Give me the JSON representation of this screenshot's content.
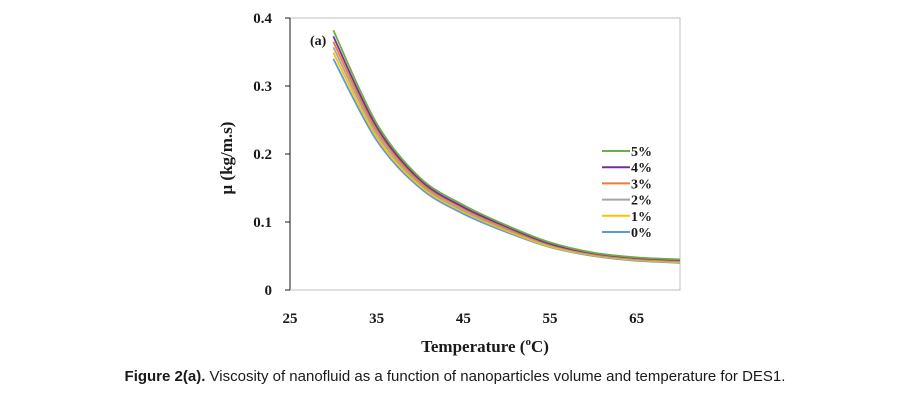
{
  "chart_data": {
    "type": "line",
    "panel_label": "(a)",
    "xlabel": "Temperature",
    "xlabel_unit_prefix": "(",
    "xlabel_unit_sup": "o",
    "xlabel_unit_suffix": "C)",
    "ylabel": "μ (kg/m.s)",
    "xlim": [
      25,
      70
    ],
    "ylim": [
      0,
      0.4
    ],
    "xticks": [
      25,
      35,
      45,
      55,
      65
    ],
    "yticks": [
      0,
      0.1,
      0.2,
      0.3,
      0.4
    ],
    "ytick_labels": [
      "0",
      "0.1",
      "0.2",
      "0.3",
      "0.4"
    ],
    "legend_position": "right",
    "x": [
      30,
      35,
      40,
      45,
      50,
      55,
      60,
      65,
      70
    ],
    "series": [
      {
        "name": "5%",
        "color": "#70ad47",
        "values": [
          0.382,
          0.245,
          0.165,
          0.125,
          0.095,
          0.07,
          0.055,
          0.048,
          0.045
        ]
      },
      {
        "name": "4%",
        "color": "#7030a0",
        "values": [
          0.373,
          0.24,
          0.162,
          0.122,
          0.093,
          0.068,
          0.054,
          0.047,
          0.044
        ]
      },
      {
        "name": "3%",
        "color": "#ed7d31",
        "values": [
          0.365,
          0.235,
          0.159,
          0.12,
          0.091,
          0.067,
          0.053,
          0.046,
          0.043
        ]
      },
      {
        "name": "2%",
        "color": "#a5a5a5",
        "values": [
          0.357,
          0.23,
          0.156,
          0.117,
          0.089,
          0.066,
          0.052,
          0.045,
          0.042
        ]
      },
      {
        "name": "1%",
        "color": "#ffc000",
        "values": [
          0.349,
          0.225,
          0.153,
          0.115,
          0.087,
          0.064,
          0.051,
          0.044,
          0.041
        ]
      },
      {
        "name": "0%",
        "color": "#5b9bd5",
        "values": [
          0.34,
          0.22,
          0.15,
          0.112,
          0.085,
          0.063,
          0.05,
          0.043,
          0.04
        ]
      }
    ]
  },
  "caption": {
    "bold": "Figure 2(a).",
    "text": " Viscosity of nanofluid as a function of nanoparticles volume and temperature for DES1."
  }
}
